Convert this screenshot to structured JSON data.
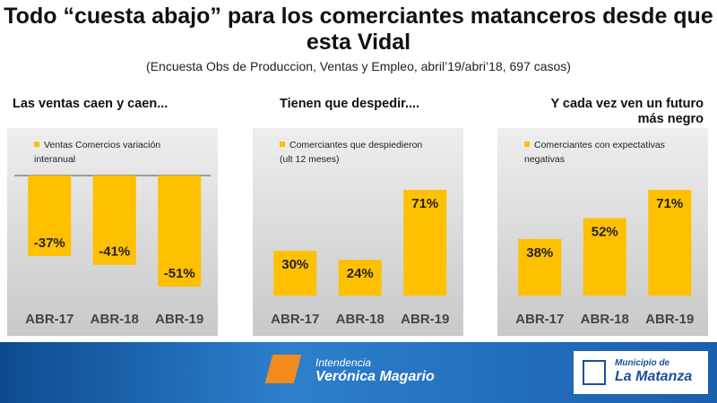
{
  "header": {
    "title": "Todo “cuesta abajo” para los comerciantes matanceros desde que esta Vidal",
    "subtitle": "(Encuesta Obs de Produccion, Ventas y Empleo,  abril’19/abri’18, 697 casos)"
  },
  "chart_data": [
    {
      "type": "bar",
      "title": "Las ventas caen y caen...",
      "categories": [
        "ABR-17",
        "ABR-18",
        "ABR-19"
      ],
      "series": [
        {
          "name": "Ventas Comercios variación interanual",
          "color": "#ffc000",
          "values": [
            -37,
            -41,
            -51
          ],
          "value_labels": [
            "-37%",
            "-41%",
            "-51%"
          ]
        }
      ]
    },
    {
      "type": "bar",
      "title": "Tienen que despedir....",
      "categories": [
        "ABR-17",
        "ABR-18",
        "ABR-19"
      ],
      "series": [
        {
          "name": "Comerciantes que despiedieron (ult 12 meses)",
          "color": "#ffc000",
          "values": [
            30,
            24,
            71
          ],
          "value_labels": [
            "30%",
            "24%",
            "71%"
          ]
        }
      ]
    },
    {
      "type": "bar",
      "title": "Y cada vez ven un futuro más negro",
      "categories": [
        "ABR-17",
        "ABR-18",
        "ABR-19"
      ],
      "series": [
        {
          "name": "Comerciantes con expectativas negativas",
          "color": "#ffc000",
          "values": [
            38,
            52,
            71
          ],
          "value_labels": [
            "38%",
            "52%",
            "71%"
          ]
        }
      ]
    }
  ],
  "footer": {
    "left_small": "Intendencia",
    "left_big": "Verónica Magario",
    "right_small": "Municipio de",
    "right_big": "La Matanza"
  }
}
